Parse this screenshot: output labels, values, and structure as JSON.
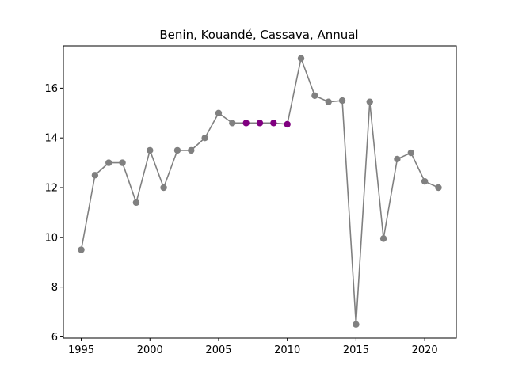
{
  "chart_data": {
    "type": "line",
    "title": "Benin, Kouandé, Cassava, Annual",
    "xlabel": "",
    "ylabel": "",
    "xlim": [
      1993.7,
      2022.3
    ],
    "ylim": [
      5.95,
      17.7
    ],
    "x_ticks": [
      1995,
      2000,
      2005,
      2010,
      2015,
      2020
    ],
    "y_ticks": [
      6,
      8,
      10,
      12,
      14,
      16
    ],
    "grid": false,
    "series": [
      {
        "color": "#808080",
        "highlight_color": "#800080",
        "highlight_range": [
          2007,
          2010
        ],
        "x": [
          1995,
          1996,
          1997,
          1998,
          1999,
          2000,
          2001,
          2002,
          2003,
          2004,
          2005,
          2006,
          2007,
          2008,
          2009,
          2010,
          2011,
          2012,
          2013,
          2014,
          2015,
          2016,
          2017,
          2018,
          2019,
          2020,
          2021
        ],
        "y": [
          9.5,
          12.5,
          13.0,
          13.0,
          11.4,
          13.5,
          12.0,
          13.5,
          13.5,
          14.0,
          15.0,
          14.6,
          14.6,
          14.6,
          14.6,
          14.55,
          17.2,
          15.7,
          15.45,
          15.5,
          6.5,
          15.45,
          9.95,
          13.15,
          13.4,
          12.25,
          12.0
        ]
      }
    ]
  }
}
